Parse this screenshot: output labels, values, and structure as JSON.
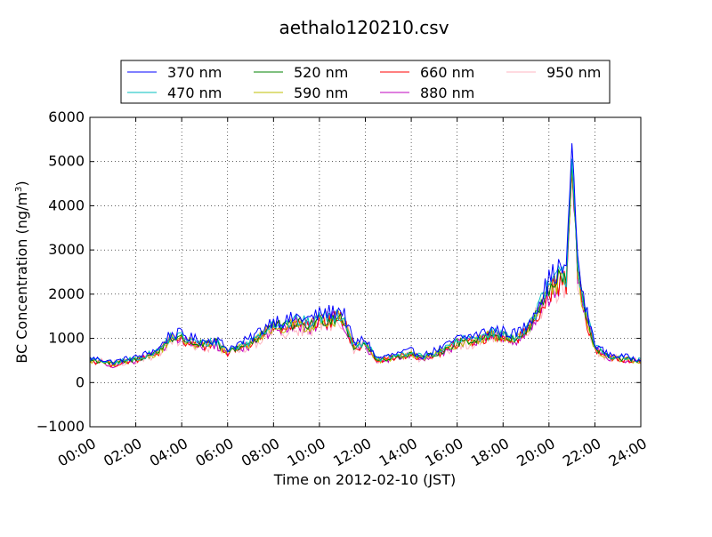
{
  "chart_data": {
    "type": "line",
    "title": "aethalo120210.csv",
    "xlabel": "Time on 2012-02-10 (JST)",
    "ylabel_main": "BC Concentration (ng/m",
    "ylabel_sup": "3",
    "ylabel_close": ")",
    "xlim": [
      0,
      24
    ],
    "ylim": [
      -1000,
      6000
    ],
    "grid": true,
    "legend_placement": "top",
    "x_ticks": [
      {
        "v": 0,
        "label": "00:00"
      },
      {
        "v": 2,
        "label": "02:00"
      },
      {
        "v": 4,
        "label": "04:00"
      },
      {
        "v": 6,
        "label": "06:00"
      },
      {
        "v": 8,
        "label": "08:00"
      },
      {
        "v": 10,
        "label": "10:00"
      },
      {
        "v": 12,
        "label": "12:00"
      },
      {
        "v": 14,
        "label": "14:00"
      },
      {
        "v": 16,
        "label": "16:00"
      },
      {
        "v": 18,
        "label": "18:00"
      },
      {
        "v": 20,
        "label": "20:00"
      },
      {
        "v": 22,
        "label": "22:00"
      },
      {
        "v": 24,
        "label": "24:00"
      }
    ],
    "y_ticks": [
      {
        "v": 6000,
        "label": "6000"
      },
      {
        "v": 5000,
        "label": "5000"
      },
      {
        "v": 4000,
        "label": "4000"
      },
      {
        "v": 3000,
        "label": "3000"
      },
      {
        "v": 2000,
        "label": "2000"
      },
      {
        "v": 1000,
        "label": "1000"
      },
      {
        "v": 0,
        "label": "0"
      },
      {
        "v": -1000,
        "label": "−1000"
      }
    ],
    "base_profile": {
      "x": [
        0,
        0.5,
        1,
        1.5,
        2,
        2.5,
        3,
        3.5,
        4,
        4.5,
        5,
        5.5,
        6,
        6.5,
        7,
        7.5,
        8,
        8.5,
        9,
        9.5,
        10,
        10.5,
        11,
        11.5,
        12,
        12.5,
        13,
        13.5,
        14,
        14.5,
        15,
        15.5,
        16,
        16.5,
        17,
        17.5,
        18,
        18.5,
        19,
        19.5,
        20,
        20.25,
        20.5,
        20.75,
        21,
        21.25,
        21.5,
        22,
        22.5,
        23,
        23.5,
        24
      ],
      "y": [
        500,
        480,
        420,
        480,
        520,
        600,
        700,
        1000,
        1000,
        900,
        850,
        900,
        700,
        800,
        900,
        1100,
        1300,
        1250,
        1350,
        1300,
        1400,
        1450,
        1500,
        800,
        900,
        500,
        550,
        600,
        650,
        550,
        650,
        750,
        900,
        950,
        1000,
        1100,
        1050,
        1000,
        1150,
        1600,
        2100,
        2250,
        2350,
        2300,
        4950,
        2600,
        1700,
        800,
        600,
        550,
        520,
        480
      ]
    },
    "series": [
      {
        "name": "370 nm",
        "color": "#0000ff",
        "scale": 1.1,
        "noise": 0.2
      },
      {
        "name": "470 nm",
        "color": "#00bfbf",
        "scale": 1.04,
        "noise": 0.18
      },
      {
        "name": "520 nm",
        "color": "#008000",
        "scale": 1.0,
        "noise": 0.18
      },
      {
        "name": "590 nm",
        "color": "#bfbf00",
        "scale": 0.98,
        "noise": 0.2
      },
      {
        "name": "660 nm",
        "color": "#ff0000",
        "scale": 0.97,
        "noise": 0.22
      },
      {
        "name": "880 nm",
        "color": "#bf00bf",
        "scale": 0.96,
        "noise": 0.24
      },
      {
        "name": "950 nm",
        "color": "#ffb6c1",
        "scale": 0.96,
        "noise": 0.3
      }
    ]
  }
}
